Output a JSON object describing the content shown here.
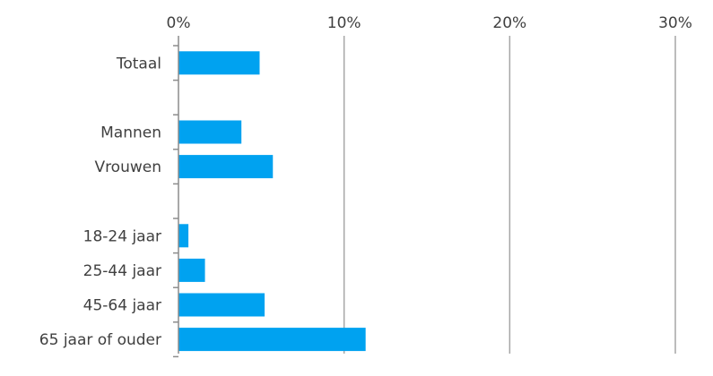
{
  "chart_data": {
    "type": "bar",
    "orientation": "horizontal",
    "title": "",
    "xlabel": "",
    "ylabel": "",
    "xlim": [
      0,
      30
    ],
    "x_ticks": [
      0,
      10,
      20,
      30
    ],
    "x_tick_labels": [
      "0%",
      "10%",
      "20%",
      "30%"
    ],
    "x_axis_position": "top",
    "grid": true,
    "legend": "none",
    "bar_color": "#00a2f0",
    "categories": [
      "Totaal",
      "",
      "Mannen",
      "Vrouwen",
      "",
      "18-24 jaar",
      "25-44 jaar",
      "45-64 jaar",
      "65 jaar of ouder"
    ],
    "values": [
      4.9,
      null,
      3.8,
      5.7,
      null,
      0.6,
      1.6,
      5.2,
      11.3
    ]
  }
}
